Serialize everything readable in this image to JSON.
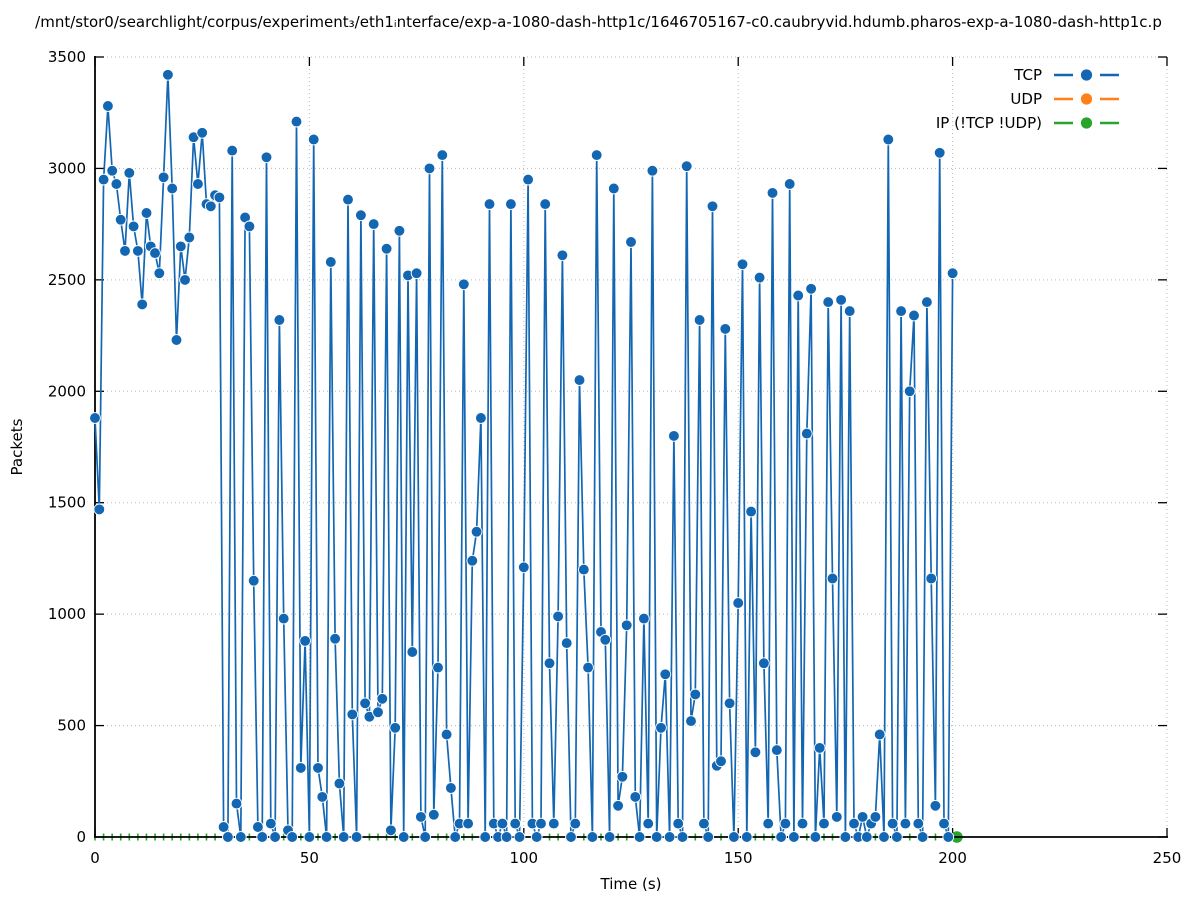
{
  "title": "/mnt/stor0/searchlight/corpus/experiment₃/eth1ᵢnterface/exp-a-1080-dash-http1c/1646705167-c0.caubryvid.hdumb.pharos-exp-a-1080-dash-http1c.p",
  "chart_data": {
    "type": "line",
    "title": "/mnt/stor0/searchlight/corpus/experiment₃/eth1ᵢnterface/exp-a-1080-dash-http1c/1646705167-c0.caubryvid.hdumb.pharos-exp-a-1080-dash-http1c.p",
    "xlabel": "Time (s)",
    "ylabel": "Packets",
    "xlim": [
      0,
      250
    ],
    "ylim": [
      0,
      3500
    ],
    "xticks": [
      0,
      50,
      100,
      150,
      200,
      250
    ],
    "yticks": [
      0,
      500,
      1000,
      1500,
      2000,
      2500,
      3000,
      3500
    ],
    "grid": true,
    "grid_style": "dotted",
    "legend_position": "top-right-inside",
    "series": [
      {
        "name": "TCP",
        "color": "#1366b2",
        "style": "linespoints",
        "marker": "circle",
        "x_start": 0,
        "x_step": 1,
        "values": [
          1880,
          1470,
          2950,
          3280,
          2990,
          2930,
          2770,
          2630,
          2980,
          2740,
          2630,
          2390,
          2800,
          2650,
          2620,
          2530,
          2960,
          3420,
          2910,
          2230,
          2650,
          2500,
          2690,
          3140,
          2930,
          3160,
          2840,
          2830,
          2880,
          2870,
          45,
          0,
          3080,
          150,
          0,
          2780,
          2740,
          1150,
          45,
          0,
          3050,
          60,
          0,
          2320,
          980,
          30,
          0,
          3210,
          310,
          880,
          0,
          3130,
          310,
          180,
          0,
          2580,
          890,
          240,
          0,
          2860,
          550,
          0,
          2790,
          600,
          540,
          2750,
          560,
          620,
          2640,
          30,
          490,
          2720,
          0,
          2520,
          830,
          2530,
          90,
          0,
          3000,
          100,
          760,
          3060,
          460,
          220,
          0,
          60,
          2480,
          60,
          1240,
          1370,
          1880,
          0,
          2840,
          60,
          0,
          60,
          0,
          2840,
          60,
          0,
          1210,
          2950,
          60,
          0,
          60,
          2840,
          780,
          60,
          990,
          2610,
          870,
          0,
          60,
          2050,
          1200,
          760,
          0,
          3060,
          920,
          885,
          0,
          2910,
          140,
          270,
          950,
          2670,
          180,
          0,
          980,
          60,
          2990,
          0,
          490,
          730,
          0,
          1800,
          60,
          0,
          3010,
          520,
          640,
          2320,
          60,
          0,
          2830,
          320,
          340,
          2280,
          600,
          0,
          1050,
          2570,
          0,
          1460,
          380,
          2510,
          780,
          60,
          2890,
          390,
          0,
          60,
          2930,
          0,
          2430,
          60,
          1810,
          2460,
          0,
          400,
          60,
          2400,
          1160,
          90,
          2410,
          0,
          2360,
          60,
          0,
          90,
          0,
          60,
          90,
          460,
          0,
          3130,
          60,
          0,
          2360,
          60,
          2000,
          2340,
          60,
          0,
          2400,
          1160,
          140,
          3070,
          60,
          0,
          2530
        ]
      },
      {
        "name": "UDP",
        "color": "#ff7f19",
        "style": "linespoints",
        "marker": "circle",
        "x": [],
        "values": []
      },
      {
        "name": "IP (!TCP  !UDP)",
        "color": "#28a42d",
        "style": "linespoints",
        "marker": "circle",
        "end_point_x": 201,
        "x": [
          0,
          2,
          4,
          6,
          8,
          10,
          12,
          14,
          16,
          18,
          20,
          22,
          24,
          26,
          28,
          30,
          32,
          34,
          36,
          38,
          40,
          42,
          44,
          46,
          48,
          50,
          52,
          54,
          56,
          58,
          60,
          62,
          64,
          66,
          68,
          70,
          72,
          74,
          76,
          78,
          80,
          82,
          84,
          86,
          88,
          90,
          92,
          94,
          96,
          98,
          100,
          102,
          104,
          106,
          108,
          110,
          112,
          114,
          116,
          118,
          120,
          122,
          124,
          126,
          128,
          130,
          132,
          134,
          136,
          138,
          140,
          142,
          144,
          146,
          148,
          150,
          152,
          154,
          156,
          158,
          160,
          162,
          164,
          166,
          168,
          170,
          172,
          174,
          176,
          178,
          180,
          182,
          184,
          186,
          188,
          190,
          192,
          194,
          196,
          198,
          200,
          201
        ],
        "values": [
          0,
          0,
          0,
          0,
          0,
          0,
          0,
          0,
          0,
          0,
          0,
          0,
          0,
          0,
          0,
          0,
          0,
          0,
          0,
          0,
          0,
          0,
          0,
          0,
          0,
          0,
          0,
          0,
          0,
          0,
          0,
          0,
          0,
          0,
          0,
          0,
          0,
          0,
          0,
          0,
          0,
          0,
          0,
          0,
          0,
          0,
          0,
          0,
          0,
          0,
          0,
          0,
          0,
          0,
          0,
          0,
          0,
          0,
          0,
          0,
          0,
          0,
          0,
          0,
          0,
          0,
          0,
          0,
          0,
          0,
          0,
          0,
          0,
          0,
          0,
          0,
          0,
          0,
          0,
          0,
          0,
          0,
          0,
          0,
          0,
          0,
          0,
          0,
          0,
          0,
          0,
          0,
          0,
          0,
          0,
          0,
          0,
          0,
          0,
          0,
          0,
          0
        ]
      }
    ]
  },
  "colors": {
    "tcp": "#1366b2",
    "udp": "#ff7f19",
    "ip": "#28a42d",
    "grid": "#b8b8b8",
    "axis": "#000000"
  }
}
